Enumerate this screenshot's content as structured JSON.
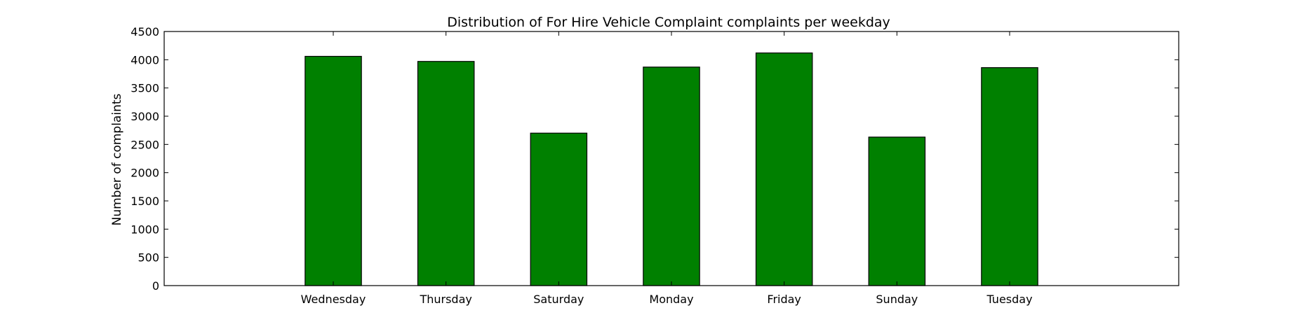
{
  "chart_data": {
    "type": "bar",
    "title": "Distribution of  For Hire Vehicle Complaint complaints per weekday",
    "xlabel": "",
    "ylabel": "Number of complaints",
    "categories": [
      "Wednesday",
      "Thursday",
      "Saturday",
      "Monday",
      "Friday",
      "Sunday",
      "Tuesday"
    ],
    "values": [
      4060,
      3970,
      2700,
      3870,
      4120,
      2630,
      3860
    ],
    "ylim": [
      0,
      4500
    ],
    "yticks": [
      0,
      500,
      1000,
      1500,
      2000,
      2500,
      3000,
      3500,
      4000,
      4500
    ],
    "bar_color": "#008000",
    "grid": false,
    "legend": "none"
  }
}
